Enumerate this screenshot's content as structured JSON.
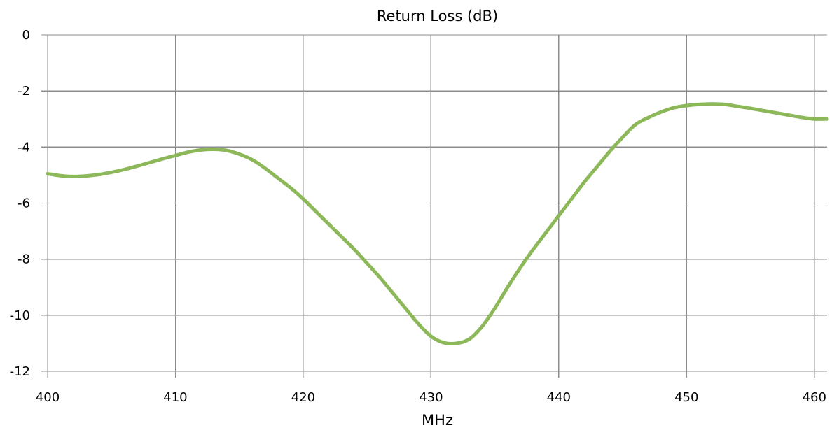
{
  "chart_data": {
    "type": "line",
    "title": "Return Loss (dB)",
    "xlabel": "MHz",
    "ylabel": "",
    "xlim": [
      400,
      461
    ],
    "ylim": [
      -12,
      0
    ],
    "x_ticks": [
      400,
      410,
      420,
      430,
      440,
      450,
      460
    ],
    "y_ticks": [
      0,
      -2,
      -4,
      -6,
      -8,
      -10,
      -12
    ],
    "grid": true,
    "legend": "none",
    "series": [
      {
        "color": "#8DB85A",
        "x": [
          400,
          401,
          402,
          403,
          404,
          405,
          406,
          407,
          408,
          409,
          410,
          411,
          412,
          413,
          414,
          415,
          416,
          417,
          418,
          419,
          420,
          421,
          422,
          423,
          424,
          425,
          426,
          427,
          428,
          429,
          430,
          431,
          432,
          433,
          434,
          435,
          436,
          437,
          438,
          439,
          440,
          441,
          442,
          443,
          444,
          445,
          446,
          447,
          448,
          449,
          450,
          451,
          452,
          453,
          454,
          455,
          456,
          457,
          458,
          459,
          460,
          461
        ],
        "y": [
          -4.95,
          -5.02,
          -5.05,
          -5.03,
          -4.98,
          -4.9,
          -4.8,
          -4.68,
          -4.55,
          -4.42,
          -4.3,
          -4.18,
          -4.1,
          -4.08,
          -4.12,
          -4.25,
          -4.45,
          -4.75,
          -5.1,
          -5.45,
          -5.85,
          -6.3,
          -6.75,
          -7.2,
          -7.65,
          -8.15,
          -8.65,
          -9.2,
          -9.75,
          -10.3,
          -10.75,
          -10.98,
          -11.0,
          -10.85,
          -10.4,
          -9.75,
          -9.0,
          -8.3,
          -7.65,
          -7.05,
          -6.45,
          -5.85,
          -5.25,
          -4.7,
          -4.15,
          -3.65,
          -3.2,
          -2.95,
          -2.75,
          -2.6,
          -2.52,
          -2.48,
          -2.46,
          -2.48,
          -2.55,
          -2.62,
          -2.7,
          -2.78,
          -2.86,
          -2.94,
          -3.0,
          -3.0
        ]
      }
    ]
  }
}
